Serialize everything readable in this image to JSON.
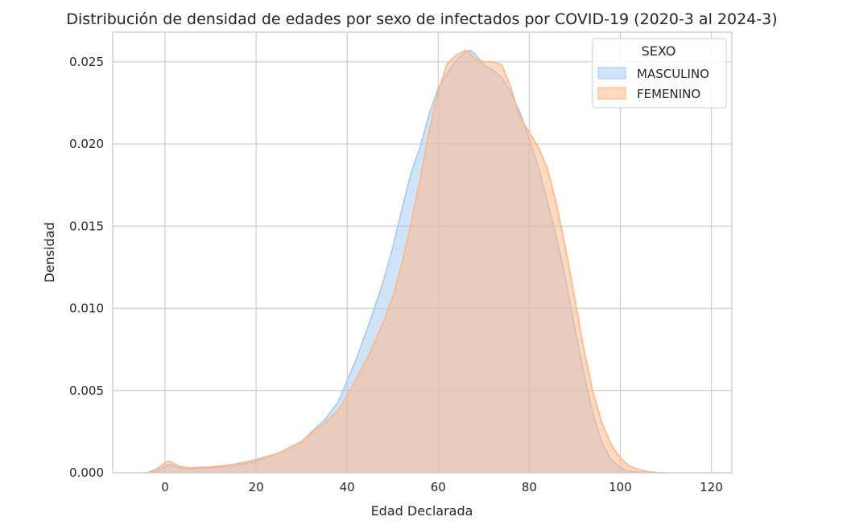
{
  "chart_data": {
    "type": "area",
    "title": "Distribución de densidad de edades por sexo de infectados por COVID-19 (2020-3 al 2024-3)",
    "xlabel": "Edad Declarada",
    "ylabel": "Densidad",
    "xlim": [
      -11.5,
      124.5
    ],
    "ylim": [
      0,
      0.0268
    ],
    "xticks": [
      0,
      20,
      40,
      60,
      80,
      100,
      120
    ],
    "xtick_labels": [
      "0",
      "20",
      "40",
      "60",
      "80",
      "100",
      "120"
    ],
    "yticks": [
      0,
      0.005,
      0.01,
      0.015,
      0.02,
      0.025
    ],
    "ytick_labels": [
      "0.000",
      "0.005",
      "0.010",
      "0.015",
      "0.020",
      "0.025"
    ],
    "grid": true,
    "legend": {
      "title": "SEXO",
      "placement": "top-right"
    },
    "series": [
      {
        "name": "MASCULINO",
        "color": "#a1c9f4",
        "x": [
          -4,
          -2,
          0,
          1,
          3,
          5,
          10,
          15,
          20,
          25,
          30,
          33,
          35,
          38,
          40,
          42,
          45,
          48,
          50,
          52,
          54,
          56,
          58,
          60,
          62,
          64,
          66,
          67,
          68,
          70,
          72,
          74,
          76,
          78,
          80,
          82,
          84,
          86,
          88,
          90,
          92,
          94,
          96,
          98,
          100,
          102,
          104,
          106,
          108,
          110
        ],
        "y": [
          0,
          0.0001,
          0.0004,
          0.0005,
          0.0003,
          0.00025,
          0.0003,
          0.0004,
          0.0007,
          0.0012,
          0.0019,
          0.0027,
          0.0032,
          0.0043,
          0.0056,
          0.0069,
          0.0092,
          0.0117,
          0.0137,
          0.016,
          0.0182,
          0.0198,
          0.0218,
          0.0234,
          0.0243,
          0.0251,
          0.0256,
          0.0257,
          0.0255,
          0.0248,
          0.0245,
          0.024,
          0.0231,
          0.0219,
          0.0203,
          0.0186,
          0.0165,
          0.0143,
          0.0118,
          0.0088,
          0.006,
          0.0036,
          0.0018,
          0.0008,
          0.0003,
          0.0001,
          4e-05,
          1e-05,
          0,
          0
        ]
      },
      {
        "name": "FEMENINO",
        "color": "#ffb482",
        "x": [
          -4,
          -2,
          0,
          1,
          3,
          5,
          10,
          15,
          20,
          25,
          30,
          33,
          35,
          38,
          40,
          42,
          45,
          48,
          50,
          52,
          54,
          56,
          58,
          60,
          62,
          64,
          66,
          67,
          68,
          70,
          72,
          74,
          76,
          78,
          80,
          82,
          84,
          86,
          88,
          90,
          92,
          94,
          96,
          98,
          100,
          102,
          104,
          106,
          108,
          110
        ],
        "y": [
          0,
          0.0002,
          0.0006,
          0.0007,
          0.0004,
          0.0003,
          0.00035,
          0.0005,
          0.0008,
          0.0012,
          0.0019,
          0.0026,
          0.003,
          0.0038,
          0.0047,
          0.0057,
          0.0073,
          0.0092,
          0.0107,
          0.0127,
          0.0151,
          0.0178,
          0.0208,
          0.0232,
          0.0249,
          0.0254,
          0.0257,
          0.0255,
          0.0252,
          0.025,
          0.025,
          0.0248,
          0.0234,
          0.0216,
          0.0207,
          0.0198,
          0.0185,
          0.0163,
          0.0136,
          0.0106,
          0.0075,
          0.0049,
          0.003,
          0.0017,
          0.0009,
          0.0004,
          0.0002,
          7e-05,
          2e-05,
          0
        ]
      }
    ]
  }
}
